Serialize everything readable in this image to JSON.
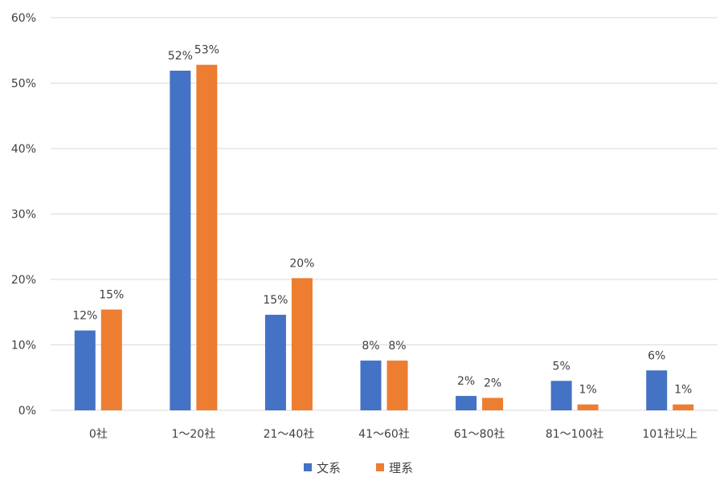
{
  "chart_data": {
    "type": "bar",
    "categories": [
      "0社",
      "1〜20社",
      "21〜40社",
      "41〜60社",
      "61〜80社",
      "81〜100社",
      "101社以上"
    ],
    "series": [
      {
        "name": "文系",
        "color": "#4472C4",
        "values": [
          12.2,
          51.9,
          14.6,
          7.6,
          2.2,
          4.5,
          6.1
        ],
        "labels": [
          "12%",
          "52%",
          "15%",
          "8%",
          "2%",
          "5%",
          "6%"
        ]
      },
      {
        "name": "理系",
        "color": "#ED7D31",
        "values": [
          15.4,
          52.8,
          20.2,
          7.6,
          1.9,
          0.9,
          0.9
        ],
        "labels": [
          "15%",
          "53%",
          "20%",
          "8%",
          "2%",
          "1%",
          "1%"
        ]
      }
    ],
    "yticks": [
      "0%",
      "10%",
      "20%",
      "30%",
      "40%",
      "50%",
      "60%"
    ],
    "ylim": [
      0,
      60
    ],
    "grid": true,
    "legend_position": "bottom",
    "title": "",
    "xlabel": "",
    "ylabel": ""
  }
}
